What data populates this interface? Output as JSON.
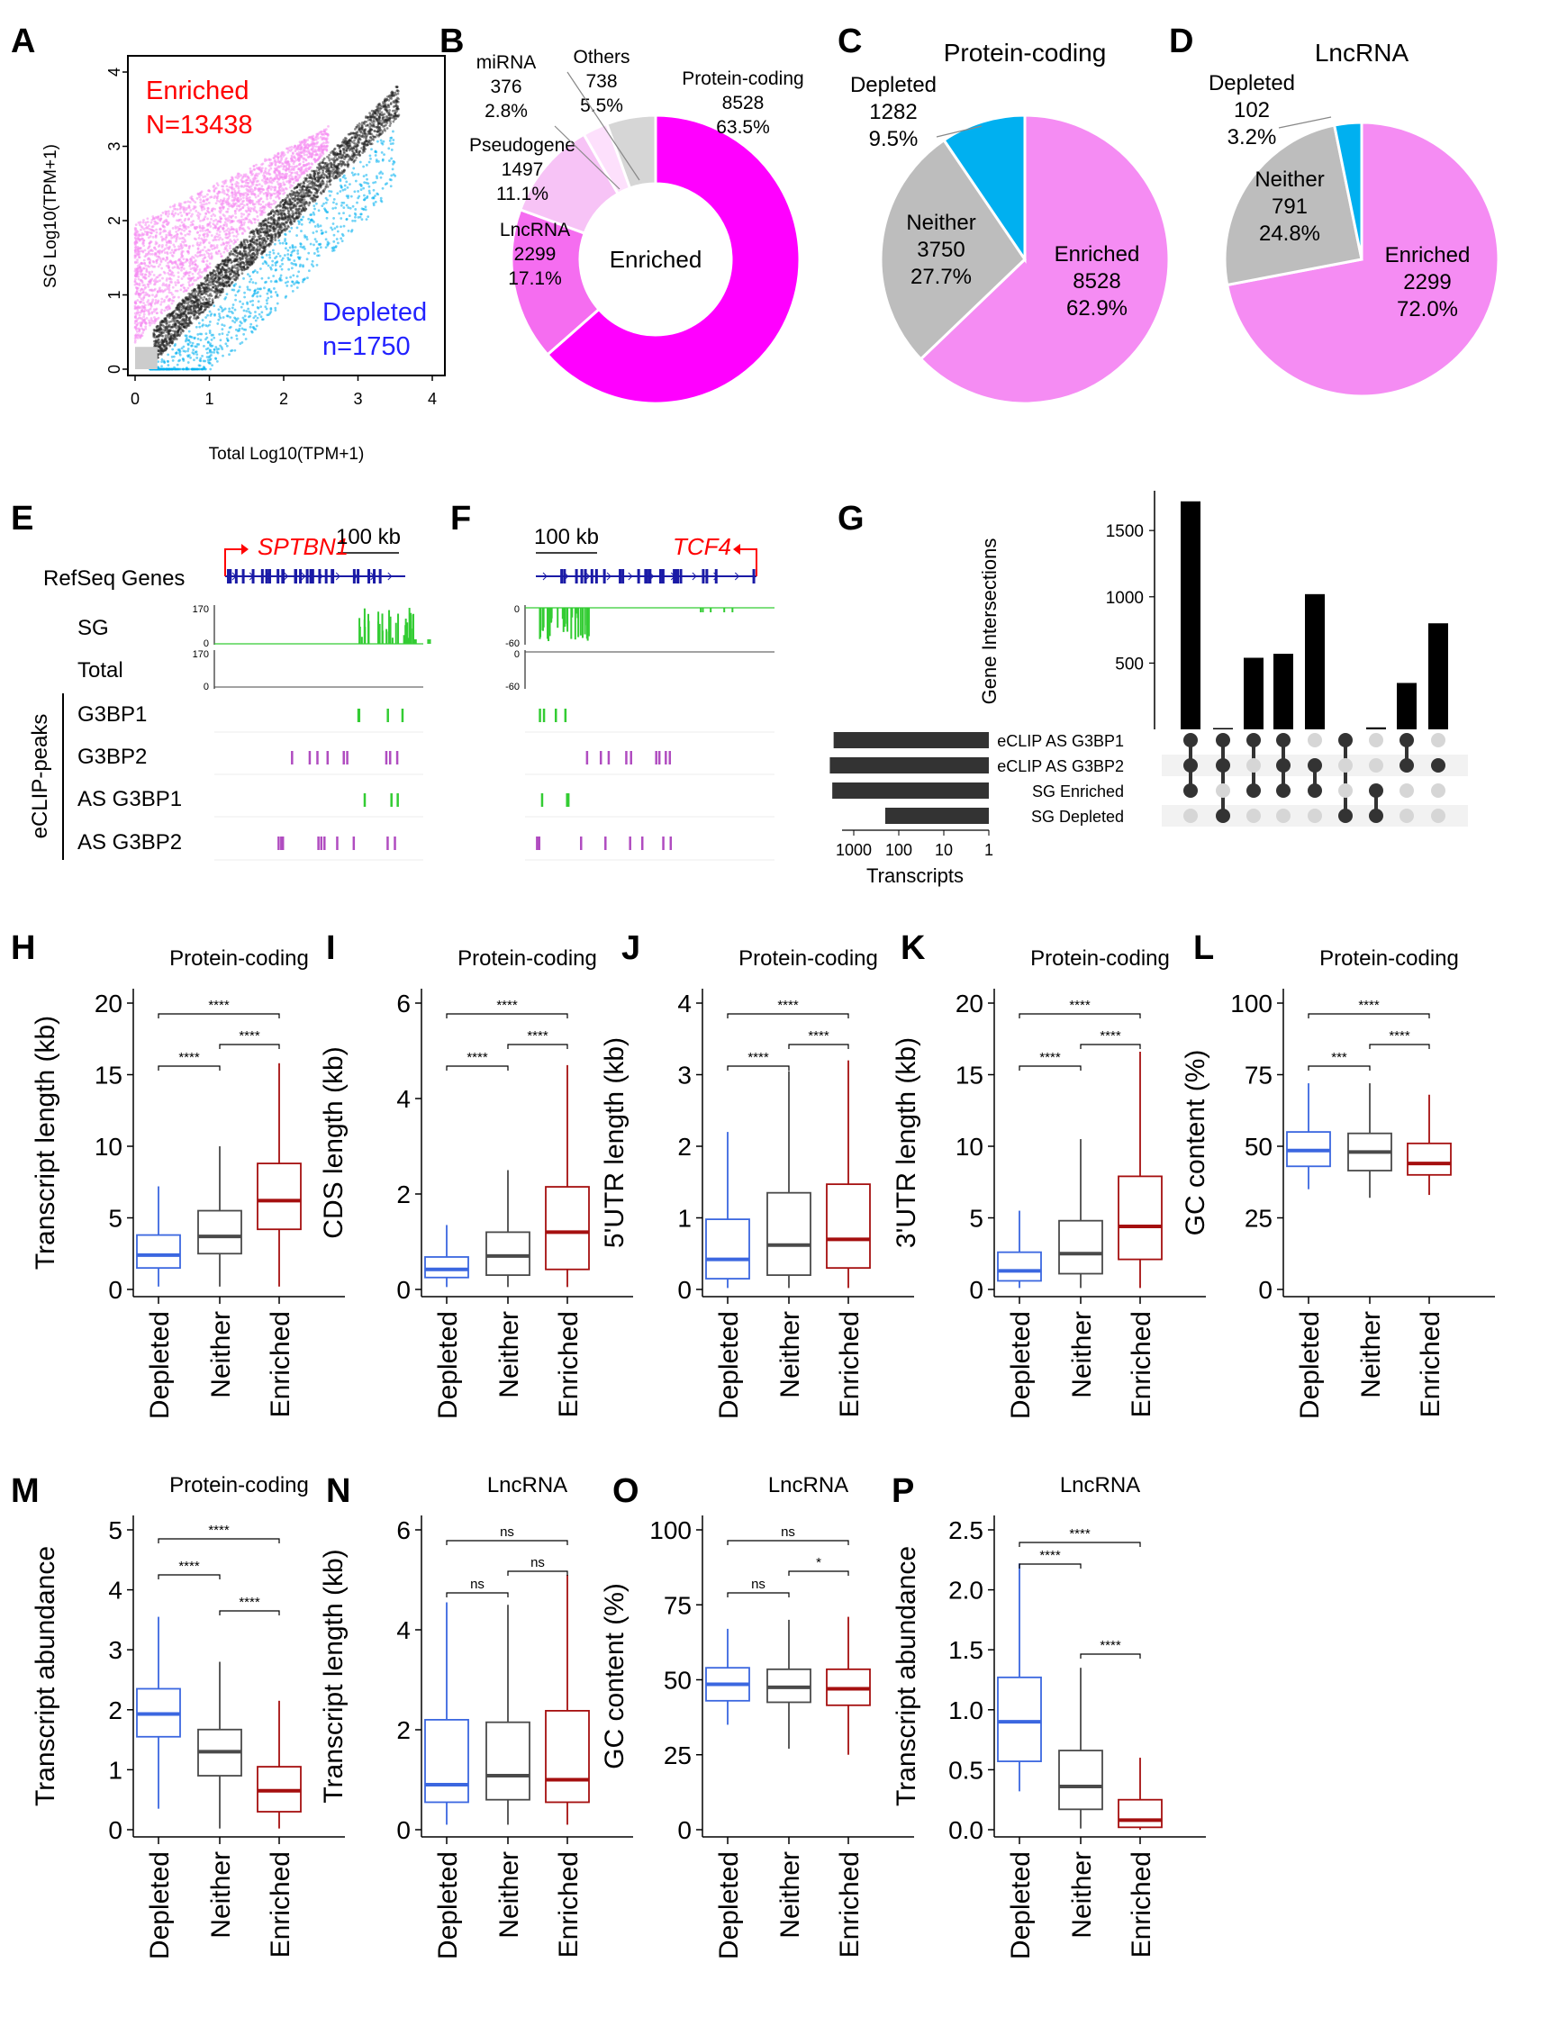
{
  "colors": {
    "enriched": "#ff00ff",
    "enriched_light": "#f58cf3",
    "enriched_pale": "#f7c3f6",
    "depleted": "#00b0f0",
    "neither": "#bdbdbd",
    "others": "#d6d6d6",
    "depleted_box": "#3b67e0",
    "neither_box": "#4a4a4a",
    "enriched_box": "#a50f0f",
    "track_green": "#33cc33",
    "track_purple": "#b04cc0",
    "gene_blue": "#1a1aa6",
    "red": "#ff0000",
    "blue": "#2222ff"
  },
  "panel_labels": [
    "A",
    "B",
    "C",
    "D",
    "E",
    "F",
    "G",
    "H",
    "I",
    "J",
    "K",
    "L",
    "M",
    "N",
    "O",
    "P"
  ],
  "groups": [
    "Depleted",
    "Neither",
    "Enriched"
  ],
  "panelA": {
    "xlabel": "Total Log10(TPM+1)",
    "ylabel": "SG Log10(TPM+1)",
    "x_ticks": [
      "0",
      "1",
      "2",
      "3",
      "4"
    ],
    "y_ticks": [
      "0",
      "1",
      "2",
      "3",
      "4"
    ],
    "xlim": [
      0,
      4
    ],
    "ylim": [
      0,
      4
    ],
    "enriched_label": "Enriched",
    "enriched_n": "N=13438",
    "depleted_label": "Depleted",
    "depleted_n": "n=1750"
  },
  "panelB": {
    "type": "donut",
    "center": "Enriched",
    "slices": [
      {
        "label": "Protein-coding",
        "count": "8528",
        "pct": "63.5%",
        "value": 63.5
      },
      {
        "label": "LncRNA",
        "count": "2299",
        "pct": "17.1%",
        "value": 17.1
      },
      {
        "label": "Pseudogene",
        "count": "1497",
        "pct": "11.1%",
        "value": 11.1
      },
      {
        "label": "miRNA",
        "count": "376",
        "pct": "2.8%",
        "value": 2.8
      },
      {
        "label": "Others",
        "count": "738",
        "pct": "5.5%",
        "value": 5.5
      }
    ]
  },
  "panelC": {
    "title": "Protein-coding",
    "slices": [
      {
        "label": "Enriched",
        "count": "8528",
        "pct": "62.9%",
        "value": 62.9
      },
      {
        "label": "Neither",
        "count": "3750",
        "pct": "27.7%",
        "value": 27.7
      },
      {
        "label": "Depleted",
        "count": "1282",
        "pct": "9.5%",
        "value": 9.5
      }
    ]
  },
  "panelD": {
    "title": "LncRNA",
    "slices": [
      {
        "label": "Enriched",
        "count": "2299",
        "pct": "72.0%",
        "value": 72.0
      },
      {
        "label": "Neither",
        "count": "791",
        "pct": "24.8%",
        "value": 24.8
      },
      {
        "label": "Depleted",
        "count": "102",
        "pct": "3.2%",
        "value": 3.2
      }
    ]
  },
  "panelE": {
    "gene": "SPTBN1",
    "scale": "100 kb",
    "refseq": "RefSeq Genes",
    "sg": "SG",
    "total": "Total",
    "sg_max": "170",
    "sg_min": "0",
    "total_max": "170",
    "total_min": "0",
    "group_label": "eCLIP-peaks",
    "peaks": [
      "G3BP1",
      "G3BP2",
      "AS G3BP1",
      "AS G3BP2"
    ]
  },
  "panelF": {
    "gene": "TCF4",
    "scale": "100 kb",
    "sg_max": "0",
    "sg_min": "-60",
    "total_max": "0",
    "total_min": "-60"
  },
  "panelG": {
    "ylabel": "Gene Intersections",
    "xlabel": "Transcripts",
    "y_ticks": [
      "500",
      "1000",
      "1500"
    ],
    "x_ticks": [
      "1000",
      "100",
      "10",
      "1"
    ],
    "sets": [
      "eCLIP AS G3BP1",
      "eCLIP AS G3BP2",
      "SG Enriched",
      "SG Depleted"
    ],
    "set_sizes": [
      2800,
      3400,
      3000,
      200
    ],
    "intersections": [
      1720,
      10,
      540,
      570,
      1020,
      0,
      15,
      350,
      800
    ],
    "matrix": [
      [
        1,
        1,
        1,
        0
      ],
      [
        1,
        1,
        0,
        1
      ],
      [
        1,
        0,
        1,
        0
      ],
      [
        1,
        1,
        1,
        0
      ],
      [
        0,
        1,
        1,
        0
      ],
      [
        1,
        0,
        0,
        1
      ],
      [
        0,
        0,
        1,
        1
      ],
      [
        1,
        1,
        0,
        0
      ],
      [
        0,
        1,
        0,
        0
      ]
    ]
  },
  "boxplots": [
    {
      "id": "H",
      "title": "Protein-coding",
      "ylabel": "Transcript length (kb)",
      "ylim": [
        0,
        20
      ],
      "ticks": [
        "0",
        "5",
        "10",
        "15",
        "20"
      ],
      "boxes": [
        [
          0.2,
          1.5,
          2.4,
          3.8,
          7.2
        ],
        [
          0.2,
          2.5,
          3.7,
          5.5,
          10
        ],
        [
          0.2,
          4.2,
          6.2,
          8.8,
          15.8
        ]
      ],
      "sig": [
        "****",
        "****",
        "****"
      ]
    },
    {
      "id": "I",
      "title": "Protein-coding",
      "ylabel": "CDS length (kb)",
      "ylim": [
        0,
        6
      ],
      "ticks": [
        "0",
        "2",
        "4",
        "6"
      ],
      "boxes": [
        [
          0.05,
          0.25,
          0.42,
          0.68,
          1.35
        ],
        [
          0.05,
          0.3,
          0.7,
          1.2,
          2.5
        ],
        [
          0.05,
          0.42,
          1.2,
          2.15,
          4.7
        ]
      ],
      "sig": [
        "****",
        "****",
        "****"
      ]
    },
    {
      "id": "J",
      "title": "Protein-coding",
      "ylabel": "5'UTR length (kb)",
      "ylim": [
        0,
        4
      ],
      "ticks": [
        "0",
        "1",
        "2",
        "3",
        "4"
      ],
      "boxes": [
        [
          0.02,
          0.15,
          0.42,
          0.98,
          2.2
        ],
        [
          0.02,
          0.2,
          0.62,
          1.35,
          3.05
        ],
        [
          0.02,
          0.3,
          0.7,
          1.47,
          3.2
        ]
      ],
      "sig": [
        "****",
        "****",
        "****"
      ]
    },
    {
      "id": "K",
      "title": "Protein-coding",
      "ylabel": "3'UTR length (kb)",
      "ylim": [
        0,
        20
      ],
      "ticks": [
        "0",
        "5",
        "10",
        "15",
        "20"
      ],
      "boxes": [
        [
          0.1,
          0.6,
          1.3,
          2.6,
          5.5
        ],
        [
          0.1,
          1.1,
          2.5,
          4.8,
          10.5
        ],
        [
          0.1,
          2.1,
          4.4,
          7.9,
          16.6
        ]
      ],
      "sig": [
        "****",
        "****",
        "****"
      ]
    },
    {
      "id": "L",
      "title": "Protein-coding",
      "ylabel": "GC content (%)",
      "ylim": [
        0,
        100
      ],
      "ticks": [
        "0",
        "25",
        "50",
        "75",
        "100"
      ],
      "boxes": [
        [
          35,
          43,
          48.5,
          55,
          72
        ],
        [
          32,
          41.5,
          48,
          54.5,
          72
        ],
        [
          33,
          40,
          44,
          51,
          68
        ]
      ],
      "sig": [
        "***",
        "****",
        "****"
      ]
    },
    {
      "id": "M",
      "title": "Protein-coding",
      "ylabel": "Transcript abundance",
      "ylim": [
        0,
        5
      ],
      "ticks": [
        "0",
        "1",
        "2",
        "3",
        "4",
        "5"
      ],
      "boxes": [
        [
          0.35,
          1.55,
          1.93,
          2.35,
          3.55
        ],
        [
          0.02,
          0.9,
          1.3,
          1.67,
          2.8
        ],
        [
          0.02,
          0.3,
          0.65,
          1.05,
          2.15
        ]
      ],
      "sig": [
        "****",
        "****",
        "****"
      ]
    },
    {
      "id": "N",
      "title": "LncRNA",
      "ylabel": "Transcript length (kb)",
      "ylim": [
        0,
        6
      ],
      "ticks": [
        "0",
        "2",
        "4",
        "6"
      ],
      "boxes": [
        [
          0.1,
          0.55,
          0.9,
          2.2,
          4.55
        ],
        [
          0.1,
          0.6,
          1.08,
          2.15,
          4.5
        ],
        [
          0.1,
          0.55,
          1.0,
          2.38,
          5.1
        ]
      ],
      "sig": [
        "ns",
        "ns",
        "ns"
      ]
    },
    {
      "id": "O",
      "title": "LncRNA",
      "ylabel": "GC content (%)",
      "ylim": [
        0,
        100
      ],
      "ticks": [
        "0",
        "25",
        "50",
        "75",
        "100"
      ],
      "boxes": [
        [
          35,
          43,
          48.5,
          54,
          67
        ],
        [
          27,
          42.5,
          47.5,
          53.5,
          70
        ],
        [
          25,
          41.5,
          47,
          53.5,
          71
        ]
      ],
      "sig": [
        "ns",
        "*",
        "ns"
      ]
    },
    {
      "id": "P",
      "title": "LncRNA",
      "ylabel": "Transcript abundance",
      "ylim": [
        0,
        2.5
      ],
      "ticks": [
        "0.0",
        "0.5",
        "1.0",
        "1.5",
        "2.0",
        "2.5"
      ],
      "boxes": [
        [
          0.32,
          0.57,
          0.9,
          1.27,
          2.22
        ],
        [
          0.01,
          0.17,
          0.36,
          0.66,
          1.35
        ],
        [
          0.0,
          0.02,
          0.08,
          0.25,
          0.6
        ]
      ],
      "sig": [
        "****",
        "****",
        "****"
      ]
    }
  ]
}
